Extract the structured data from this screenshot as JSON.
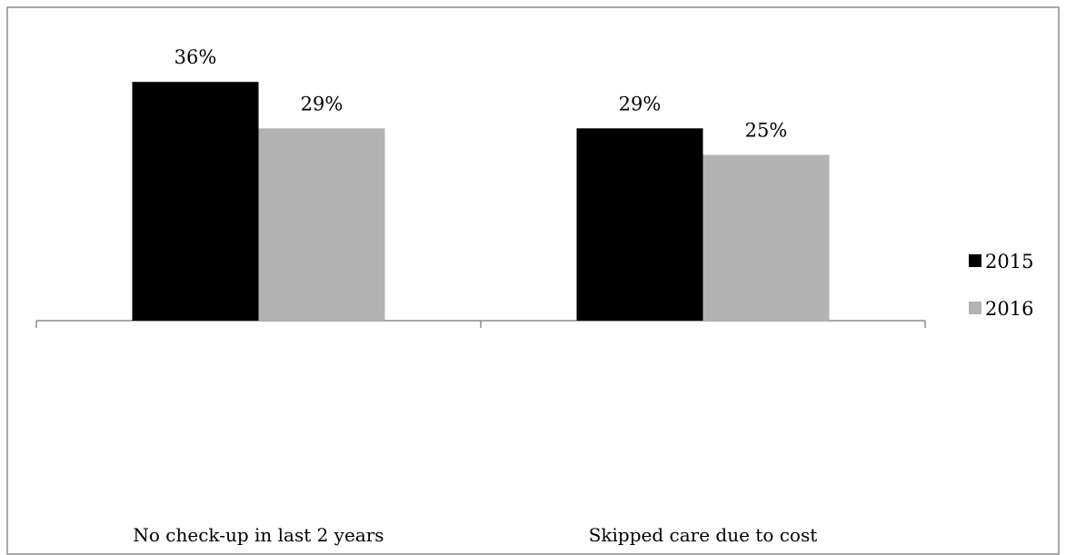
{
  "chart_data": {
    "type": "bar",
    "title": "",
    "xlabel": "",
    "ylabel": "",
    "categories": [
      "No check-up in last 2 years",
      "Skipped care due to cost"
    ],
    "series": [
      {
        "name": "2015",
        "values": [
          36,
          29
        ],
        "labels": [
          "36%",
          "29%"
        ],
        "color": "#000000"
      },
      {
        "name": "2016",
        "values": [
          29,
          25
        ],
        "labels": [
          "29%",
          "25%"
        ],
        "color": "#b3b3b3"
      }
    ],
    "ylim": [
      0,
      40
    ],
    "value_unit": "%",
    "grid": false,
    "y_axis_visible": false,
    "legend_position": "right"
  }
}
